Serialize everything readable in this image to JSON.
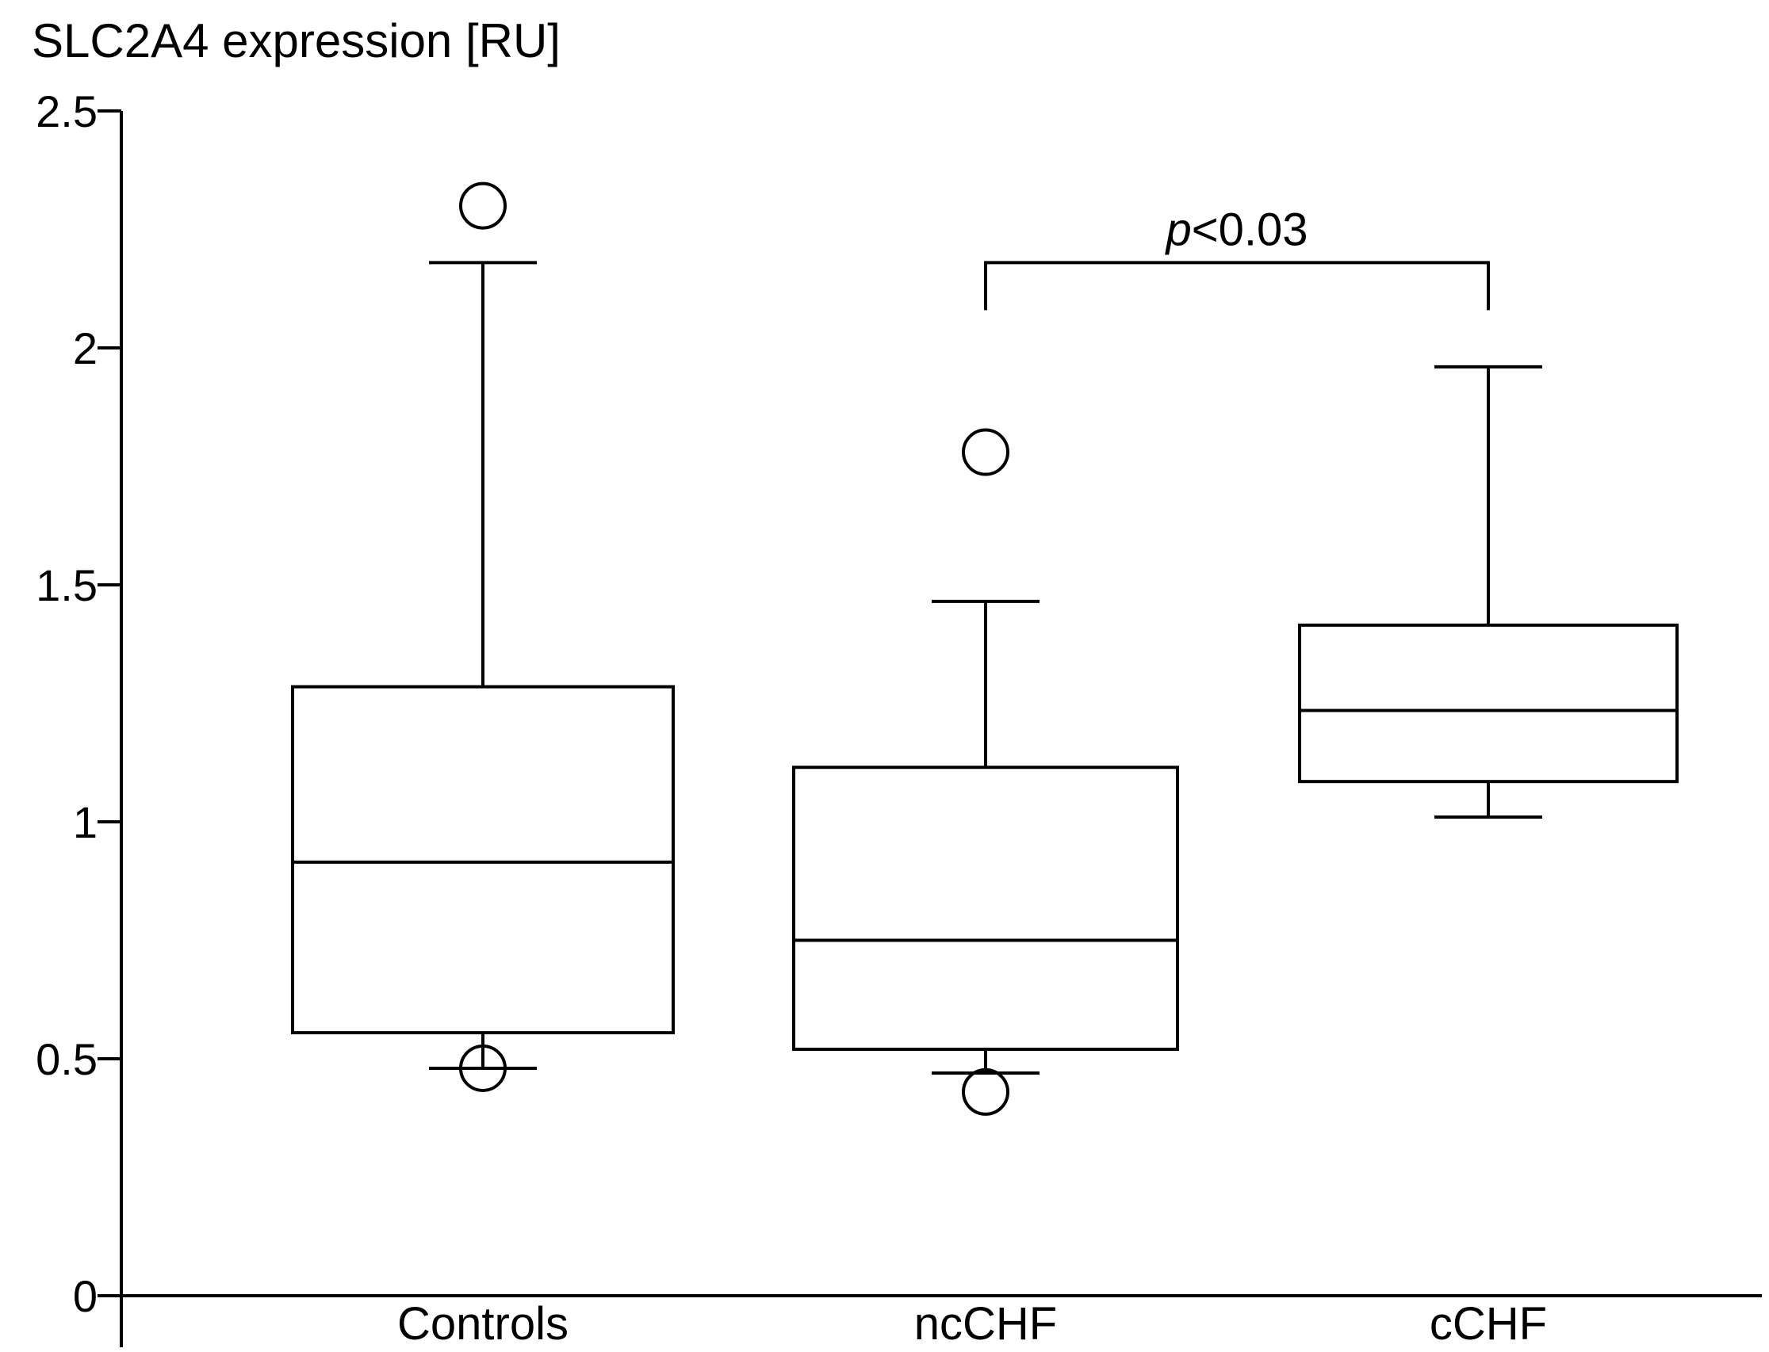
{
  "chart_data": {
    "type": "box",
    "ylabel": "SLC2A4 expression [RU]",
    "ylim": [
      0,
      2.5
    ],
    "yticks": [
      0,
      0.5,
      1,
      1.5,
      2,
      2.5
    ],
    "ytick_labels": [
      "0",
      "0.5",
      "1",
      "1.5",
      "2",
      "2.5"
    ],
    "categories": [
      "Controls",
      "ncCHF",
      "cCHF"
    ],
    "boxes": [
      {
        "category": "Controls",
        "whisker_low": 0.48,
        "q1": 0.555,
        "median": 0.915,
        "q3": 1.285,
        "whisker_high": 2.18,
        "outliers": [
          2.3,
          0.48
        ]
      },
      {
        "category": "ncCHF",
        "whisker_low": 0.47,
        "q1": 0.52,
        "median": 0.75,
        "q3": 1.115,
        "whisker_high": 1.465,
        "outliers": [
          1.78,
          0.43
        ]
      },
      {
        "category": "cCHF",
        "whisker_low": 1.01,
        "q1": 1.085,
        "median": 1.235,
        "q3": 1.415,
        "whisker_high": 1.96,
        "outliers": []
      }
    ],
    "annotations": [
      {
        "from": "ncCHF",
        "to": "cCHF",
        "bracket_y": 2.18,
        "p_symbol": "p",
        "p_text": "<0.03"
      }
    ],
    "grid": false,
    "legend": "none"
  }
}
